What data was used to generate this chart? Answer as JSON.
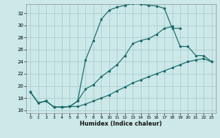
{
  "xlabel": "Humidex (Indice chaleur)",
  "bg_color": "#cce8e8",
  "grid_color": "#aacccc",
  "line_color": "#1a6b6b",
  "xlim": [
    -0.5,
    23.5
  ],
  "ylim": [
    15.5,
    33.5
  ],
  "xticks": [
    0,
    1,
    2,
    3,
    4,
    5,
    6,
    7,
    8,
    9,
    10,
    11,
    12,
    13,
    14,
    15,
    16,
    17,
    18,
    19,
    20,
    21,
    22,
    23
  ],
  "yticks": [
    16,
    18,
    20,
    22,
    24,
    26,
    28,
    30,
    32
  ],
  "curve1_x": [
    0,
    1,
    2,
    3,
    4,
    5,
    6,
    7,
    8,
    9,
    10,
    11,
    12,
    13,
    14,
    15,
    16,
    17,
    18,
    19
  ],
  "curve1_y": [
    19.0,
    17.2,
    17.5,
    16.5,
    16.5,
    16.6,
    17.5,
    24.3,
    27.5,
    31.0,
    32.5,
    33.0,
    33.3,
    33.6,
    33.5,
    33.3,
    33.2,
    32.8,
    29.5,
    29.5
  ],
  "curve2_x": [
    0,
    1,
    2,
    3,
    4,
    5,
    6,
    7,
    8,
    9,
    10,
    11,
    12,
    13,
    14,
    15,
    16,
    17,
    18,
    19,
    20,
    21,
    22,
    23
  ],
  "curve2_y": [
    19.0,
    17.2,
    17.5,
    16.5,
    16.5,
    16.6,
    17.5,
    19.5,
    20.2,
    21.5,
    22.5,
    23.5,
    25.0,
    27.0,
    27.5,
    27.8,
    28.5,
    29.5,
    29.8,
    26.5,
    26.5,
    25.0,
    25.0,
    24.0
  ],
  "curve3_x": [
    0,
    1,
    2,
    3,
    4,
    5,
    6,
    7,
    8,
    9,
    10,
    11,
    12,
    13,
    14,
    15,
    16,
    17,
    18,
    19,
    20,
    21,
    22,
    23
  ],
  "curve3_y": [
    19.0,
    17.2,
    17.5,
    16.5,
    16.5,
    16.6,
    16.6,
    17.0,
    17.5,
    18.0,
    18.5,
    19.2,
    19.8,
    20.5,
    21.0,
    21.5,
    22.0,
    22.5,
    23.0,
    23.5,
    24.0,
    24.3,
    24.5,
    24.0
  ]
}
